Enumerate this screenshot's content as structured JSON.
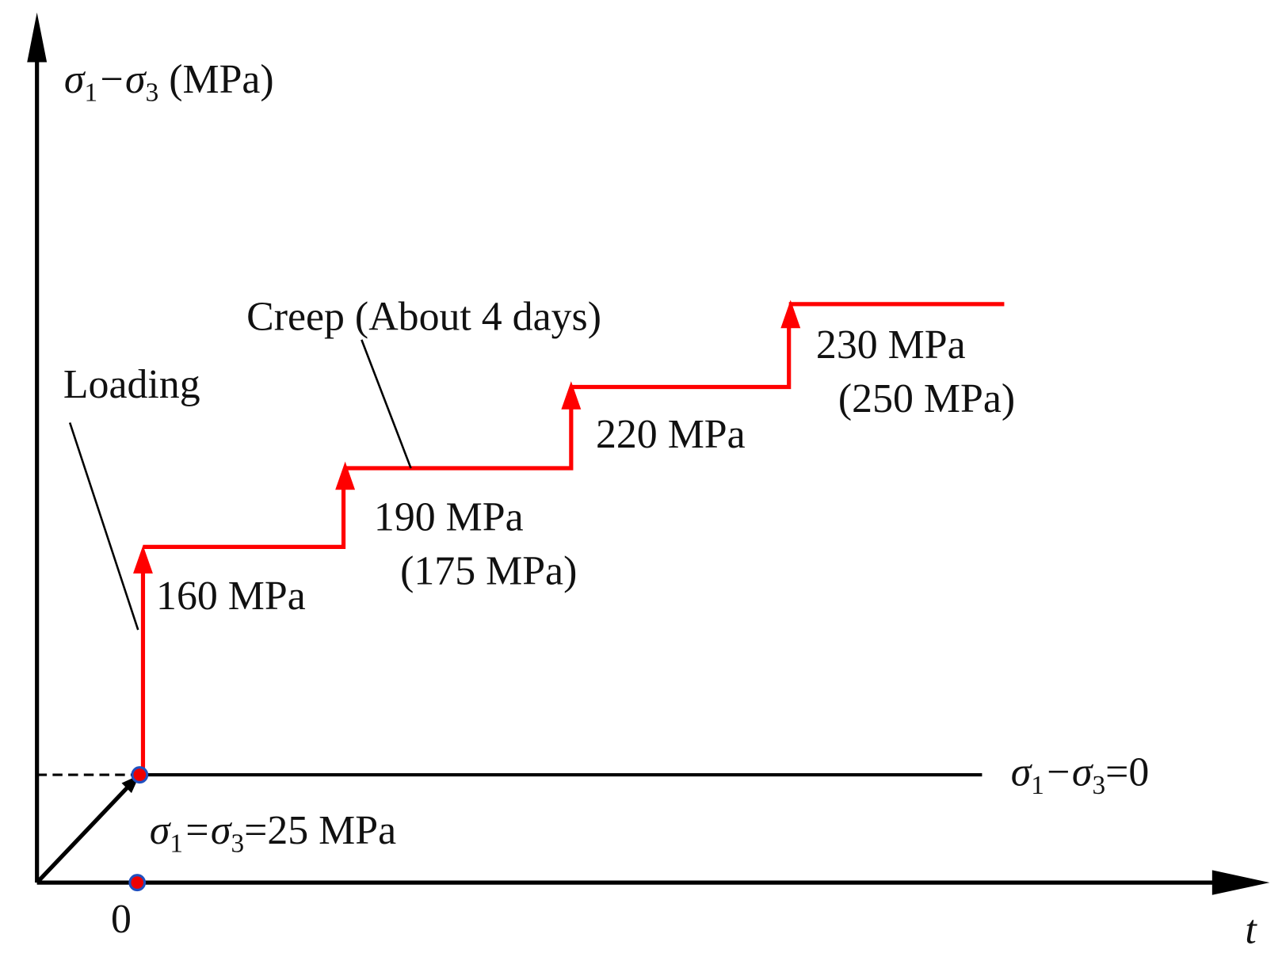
{
  "y_axis_label": [
    "σ",
    "1",
    "−σ",
    "3",
    " (MPa)"
  ],
  "x_axis_label": "t",
  "origin_label": "0",
  "baseline_label": [
    "σ",
    "1",
    "−σ",
    "3",
    "=0"
  ],
  "confining_label": [
    "σ",
    "1",
    "=σ",
    "3",
    "=25 MPa"
  ],
  "annotations": {
    "loading": "Loading",
    "creep": "Creep (About 4 days)"
  },
  "stages": [
    {
      "lines": [
        "160 MPa"
      ]
    },
    {
      "lines": [
        "190 MPa",
        "(175 MPa)"
      ]
    },
    {
      "lines": [
        "220 MPa"
      ]
    },
    {
      "lines": [
        "230 MPa",
        "(250 MPa)"
      ]
    }
  ]
}
